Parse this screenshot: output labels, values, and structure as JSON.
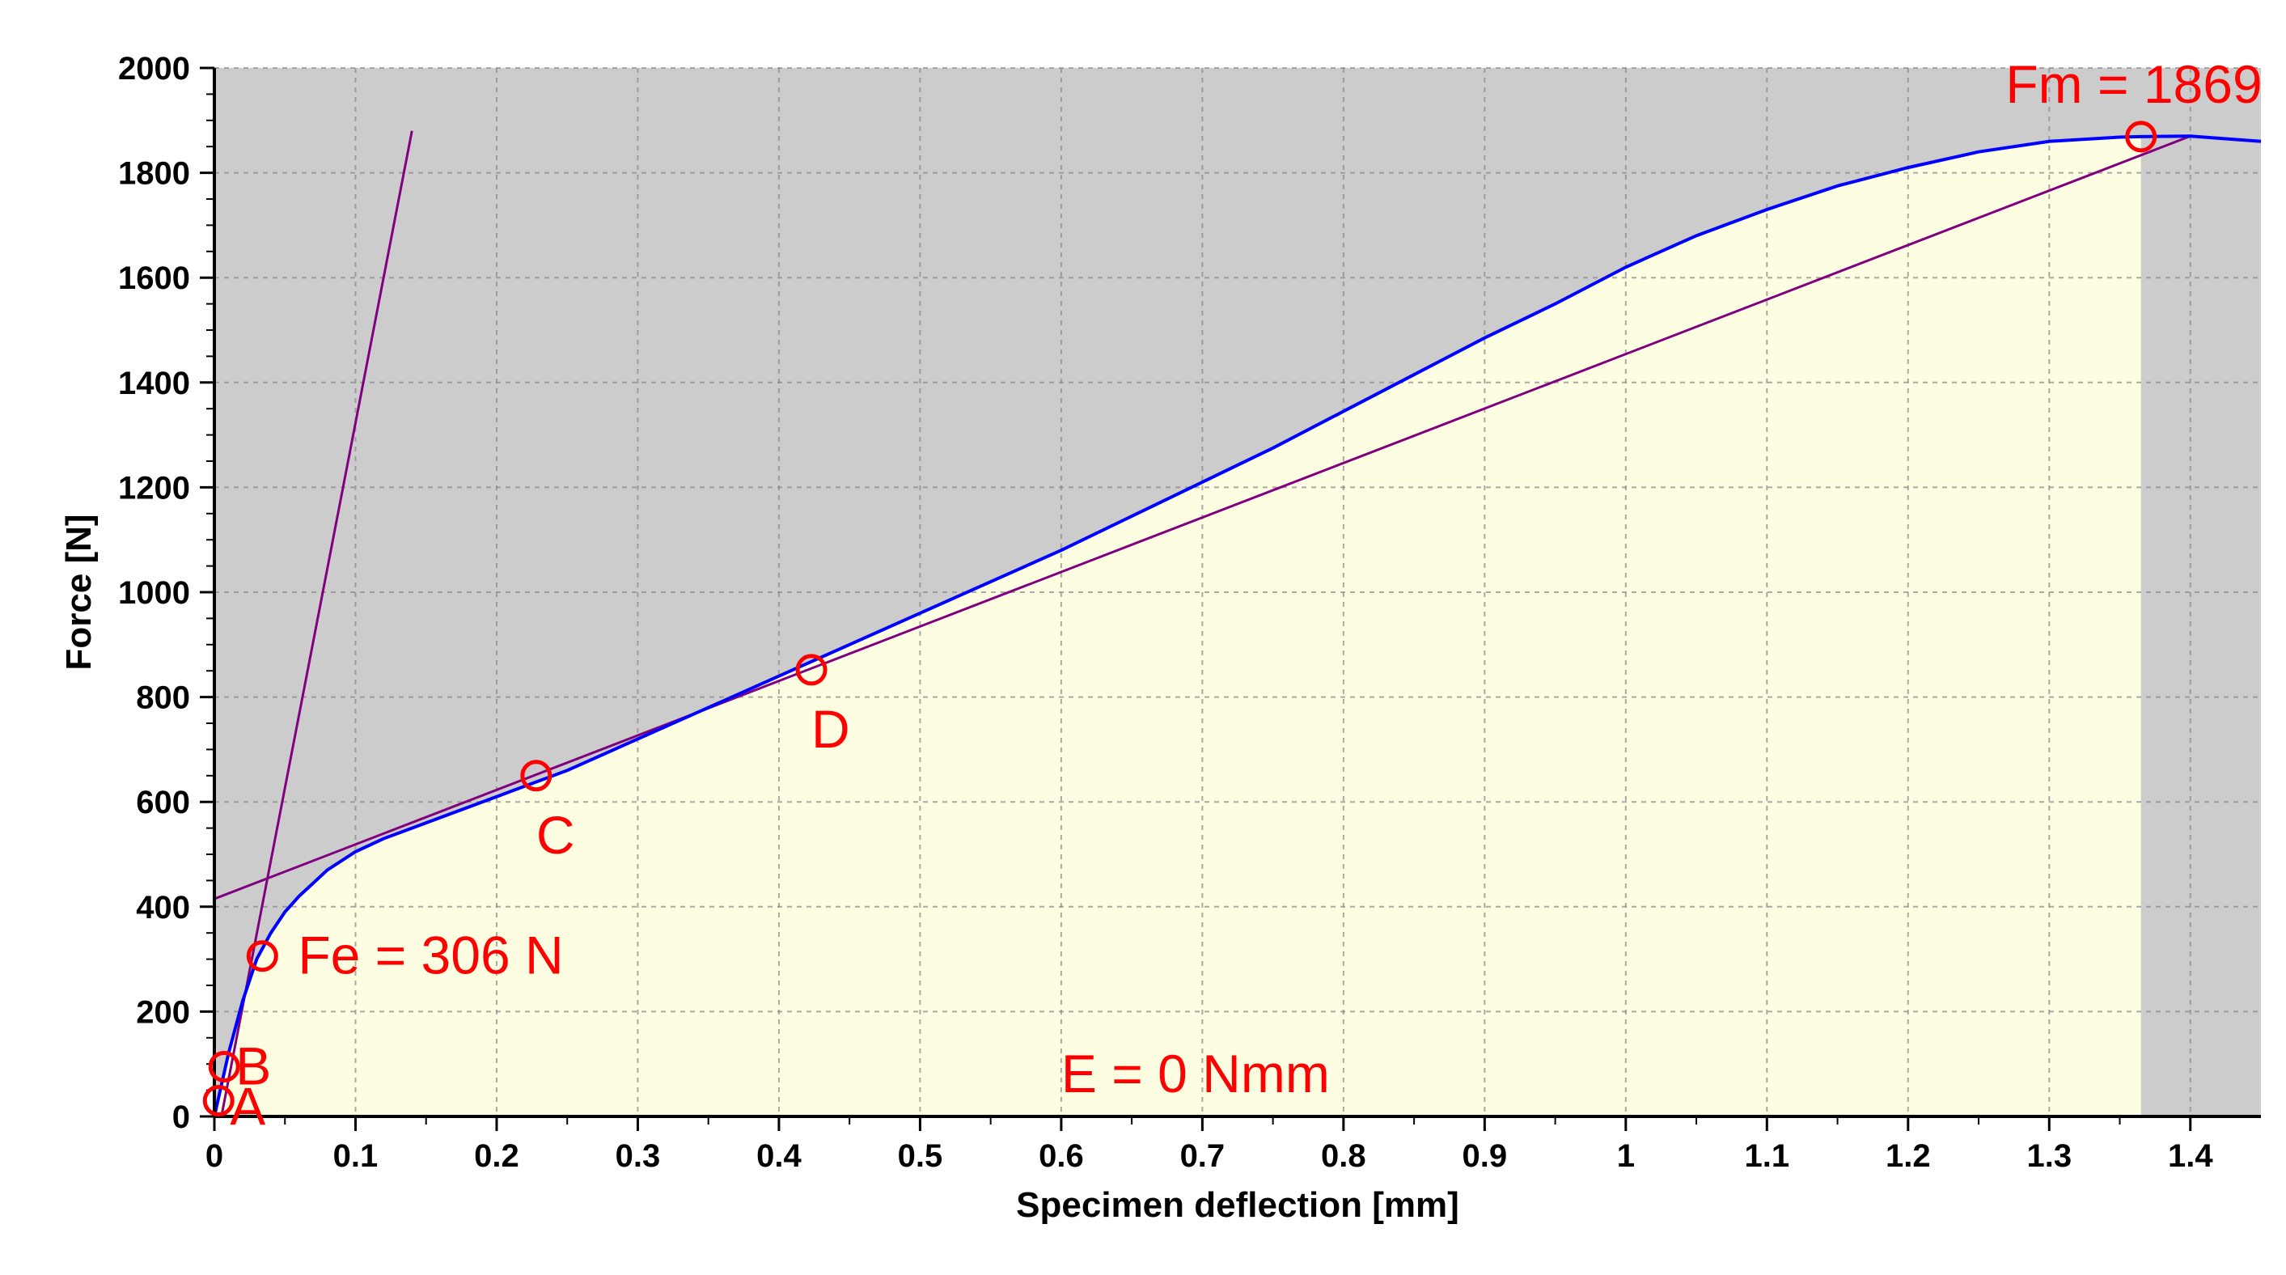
{
  "chart_data": {
    "type": "line",
    "xlabel": "Specimen deflection [mm]",
    "ylabel": "Force [N]",
    "xlim": [
      0,
      1.45
    ],
    "ylim": [
      0,
      2000
    ],
    "x_ticks": [
      "0",
      "0.1",
      "0.2",
      "0.3",
      "0.4",
      "0.5",
      "0.6",
      "0.7",
      "0.8",
      "0.9",
      "1",
      "1.1",
      "1.2",
      "1.3",
      "1.4"
    ],
    "x_tick_values": [
      0,
      0.1,
      0.2,
      0.3,
      0.4,
      0.5,
      0.6,
      0.7,
      0.8,
      0.9,
      1.0,
      1.1,
      1.2,
      1.3,
      1.4
    ],
    "y_ticks": [
      "0",
      "200",
      "400",
      "600",
      "800",
      "1000",
      "1200",
      "1400",
      "1600",
      "1800",
      "2000"
    ],
    "y_tick_values": [
      0,
      200,
      400,
      600,
      800,
      1000,
      1200,
      1400,
      1600,
      1800,
      2000
    ],
    "grid": true,
    "colors": {
      "plot_background": "#cccccc",
      "area_fill": "#fdfde1",
      "curve": "#0000ff",
      "tangent_lines": "#800080",
      "markers": "#ff0000",
      "axis": "#000000",
      "grid": "#888888"
    },
    "series": [
      {
        "x": [
          0,
          0.005,
          0.01,
          0.02,
          0.03,
          0.04,
          0.05,
          0.06,
          0.08,
          0.1,
          0.12,
          0.15,
          0.2,
          0.25,
          0.3,
          0.35,
          0.4,
          0.45,
          0.5,
          0.55,
          0.6,
          0.65,
          0.7,
          0.75,
          0.8,
          0.85,
          0.9,
          0.95,
          1.0,
          1.05,
          1.1,
          1.15,
          1.2,
          1.25,
          1.3,
          1.35,
          1.365,
          1.4,
          1.45
        ],
        "y": [
          0,
          60,
          120,
          220,
          300,
          350,
          390,
          420,
          470,
          505,
          530,
          560,
          610,
          660,
          720,
          780,
          840,
          900,
          960,
          1020,
          1080,
          1145,
          1210,
          1275,
          1345,
          1415,
          1485,
          1550,
          1620,
          1680,
          1730,
          1775,
          1810,
          1840,
          1860,
          1868,
          1869,
          1870,
          1860
        ],
        "fill_until_x": 1.365
      }
    ],
    "reference_lines": [
      {
        "x1": 0.005,
        "y1": 0,
        "x2": 0.14,
        "y2": 1880
      },
      {
        "x1": 0,
        "y1": 415,
        "x2": 1.4,
        "y2": 1870
      }
    ],
    "markers": [
      {
        "x": 0.003,
        "y": 30,
        "label": "A"
      },
      {
        "x": 0.007,
        "y": 95,
        "label": "B"
      },
      {
        "x": 0.034,
        "y": 306,
        "label": "Fe = 306 N"
      },
      {
        "x": 0.228,
        "y": 650,
        "label": "C"
      },
      {
        "x": 0.423,
        "y": 852,
        "label": "D"
      },
      {
        "x": 1.365,
        "y": 1869,
        "label": "Fm = 1869"
      }
    ],
    "annotation": "E = 0 Nmm"
  }
}
